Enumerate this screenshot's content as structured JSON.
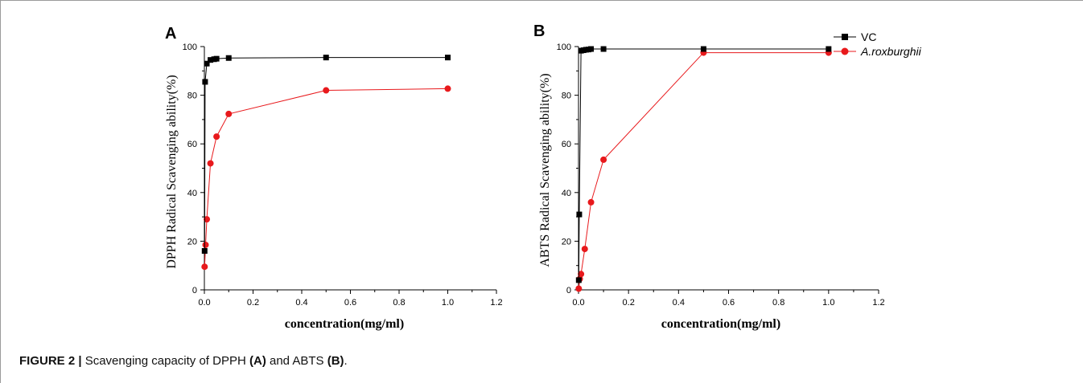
{
  "figure": {
    "caption_prefix": "FIGURE 2 |",
    "caption_text_1": " Scavenging capacity of DPPH ",
    "caption_a": "(A)",
    "caption_text_2": " and ABTS ",
    "caption_b": "(B)",
    "caption_end": "."
  },
  "colors": {
    "vc": "#000000",
    "roxburghii": "#e8191c",
    "frame": "#9a9a9a"
  },
  "chart_data": [
    {
      "panel": "A",
      "type": "line",
      "xlabel": "concentration(mg/ml)",
      "ylabel": "DPPH Radical Scavenging ability(%)",
      "xlim": [
        0,
        1.2
      ],
      "ylim": [
        0,
        100
      ],
      "xticks": [
        "0.0",
        "0.2",
        "0.4",
        "0.6",
        "0.8",
        "1.0",
        "1.2"
      ],
      "yticks": [
        "0",
        "20",
        "40",
        "60",
        "80",
        "100"
      ],
      "xtick_values": [
        0,
        0.2,
        0.4,
        0.6,
        0.8,
        1.0,
        1.2
      ],
      "ytick_values": [
        0,
        20,
        40,
        60,
        80,
        100
      ],
      "grid": false,
      "legend": null,
      "series": [
        {
          "name": "VC",
          "color": "#000000",
          "marker": "square",
          "x": [
            0.001,
            0.003,
            0.01,
            0.025,
            0.04,
            0.05,
            0.1,
            0.5,
            1.0
          ],
          "y": [
            16,
            85.5,
            93,
            94.5,
            94.8,
            95,
            95.3,
            95.5,
            95.5
          ]
        },
        {
          "name": "A.roxburghii",
          "color": "#e8191c",
          "marker": "circle",
          "x": [
            0.001,
            0.005,
            0.01,
            0.025,
            0.05,
            0.1,
            0.5,
            1.0
          ],
          "y": [
            9.5,
            18.5,
            29,
            52,
            63,
            72.3,
            82,
            82.7
          ]
        }
      ]
    },
    {
      "panel": "B",
      "type": "line",
      "xlabel": "concentration(mg/ml)",
      "ylabel": "ABTS Radical Scavenging ability(%)",
      "xlim": [
        0,
        1.2
      ],
      "ylim": [
        0,
        100
      ],
      "xticks": [
        "0.0",
        "0.2",
        "0.4",
        "0.6",
        "0.8",
        "1.0",
        "1.2"
      ],
      "yticks": [
        "0",
        "20",
        "40",
        "60",
        "80",
        "100"
      ],
      "xtick_values": [
        0,
        0.2,
        0.4,
        0.6,
        0.8,
        1.0,
        1.2
      ],
      "ytick_values": [
        0,
        20,
        40,
        60,
        80,
        100
      ],
      "grid": false,
      "legend": "top-right",
      "series": [
        {
          "name": "VC",
          "color": "#000000",
          "marker": "square",
          "x": [
            0.001,
            0.003,
            0.01,
            0.02,
            0.03,
            0.04,
            0.05,
            0.1,
            0.5,
            1.0
          ],
          "y": [
            4,
            31,
            98.3,
            98.5,
            98.7,
            98.8,
            99,
            99,
            99,
            99
          ]
        },
        {
          "name": "A.roxburghii",
          "color": "#e8191c",
          "marker": "circle",
          "x": [
            0.001,
            0.005,
            0.01,
            0.025,
            0.05,
            0.1,
            0.5,
            1.0
          ],
          "y": [
            0.5,
            4.5,
            6.5,
            16.8,
            36,
            53.5,
            97.5,
            97.5
          ]
        }
      ]
    }
  ]
}
